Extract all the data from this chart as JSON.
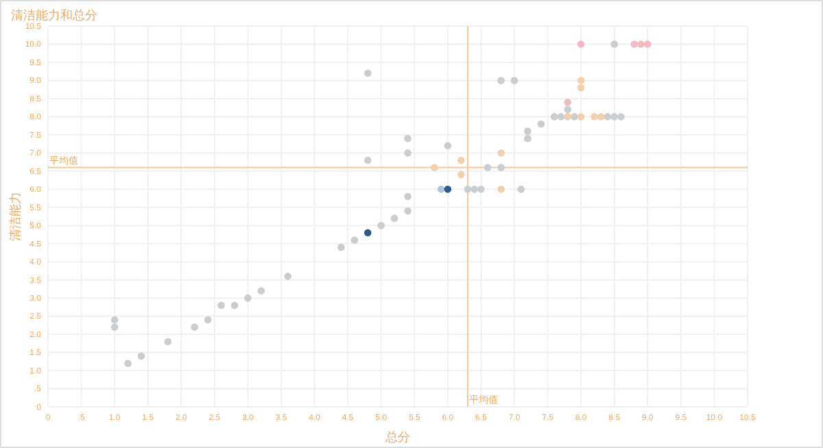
{
  "chart_data": {
    "type": "scatter",
    "title": "清洁能力和总分",
    "xlabel": "总分",
    "ylabel": "清洁能力",
    "xlim": [
      0,
      10.5
    ],
    "ylim": [
      0,
      10.5
    ],
    "xticks": [
      0,
      {
        "value": 0.5,
        "label": ".5"
      },
      {
        "value": 1,
        "label": "1.0"
      },
      1.5,
      {
        "value": 2,
        "label": "2.0"
      },
      2.5,
      {
        "value": 3,
        "label": "3.0"
      },
      3.5,
      {
        "value": 4,
        "label": "4.0"
      },
      4.5,
      {
        "value": 5,
        "label": "5.0"
      },
      5.5,
      {
        "value": 6,
        "label": "6.0"
      },
      6.5,
      {
        "value": 7,
        "label": "7.0"
      },
      7.5,
      {
        "value": 8,
        "label": "8.0"
      },
      8.5,
      {
        "value": 9,
        "label": "9.0"
      },
      9.5,
      {
        "value": 10,
        "label": "10.0"
      },
      10.5
    ],
    "yticks": [
      0,
      {
        "value": 0.5,
        "label": ".5"
      },
      {
        "value": 1,
        "label": "1.0"
      },
      1.5,
      {
        "value": 2,
        "label": "2.0"
      },
      2.5,
      {
        "value": 3,
        "label": "3.0"
      },
      3.5,
      {
        "value": 4,
        "label": "4.0"
      },
      4.5,
      {
        "value": 5,
        "label": "5.0"
      },
      5.5,
      {
        "value": 6,
        "label": "6.0"
      },
      6.5,
      {
        "value": 7,
        "label": "7.0"
      },
      7.5,
      {
        "value": 8,
        "label": "8.0"
      },
      8.5,
      {
        "value": 9,
        "label": "9.0"
      },
      9.5,
      {
        "value": 10,
        "label": "10.0"
      },
      10.5
    ],
    "grid": true,
    "marker": "circle",
    "ref_lines": [
      {
        "axis": "x",
        "value": 6.3,
        "label": "平均值",
        "color": "#f5c89a"
      },
      {
        "axis": "y",
        "value": 6.6,
        "label": "平均值",
        "color": "#f5c89a"
      }
    ],
    "series": [
      {
        "color": "#c9cdd0",
        "x": [
          1.0,
          1.0,
          1.2,
          1.4,
          1.8,
          2.2,
          2.4,
          2.6,
          2.8,
          3.0,
          3.2,
          3.6,
          4.4,
          4.6,
          5.0,
          5.2,
          5.4,
          5.4,
          5.4,
          5.4,
          4.8,
          4.8,
          6.6,
          6.8,
          6.3,
          6.4,
          6.5,
          7.1,
          6.0,
          6.8,
          7.0,
          7.2,
          7.2,
          7.4,
          7.8,
          7.6,
          7.7,
          7.9,
          8.4,
          8.5,
          8.6,
          8.5
        ],
        "values": [
          2.4,
          2.2,
          1.2,
          1.4,
          1.8,
          2.2,
          2.4,
          2.8,
          2.8,
          3.0,
          3.2,
          3.6,
          4.4,
          4.6,
          5.0,
          5.2,
          5.4,
          5.8,
          7.0,
          7.4,
          9.2,
          6.8,
          6.6,
          6.6,
          6.0,
          6.0,
          6.0,
          6.0,
          7.2,
          9.0,
          9.0,
          7.6,
          7.4,
          7.8,
          8.2,
          8.0,
          8.0,
          8.0,
          8.0,
          8.0,
          8.0,
          10.0
        ]
      },
      {
        "color": "#f3cfae",
        "x": [
          5.8,
          6.2,
          6.2,
          6.8,
          6.8,
          7.8,
          8.0,
          8.0,
          8.0,
          8.2,
          8.3
        ],
        "values": [
          6.6,
          6.8,
          6.4,
          7.0,
          6.0,
          8.0,
          8.0,
          9.0,
          8.8,
          8.0,
          8.0
        ]
      },
      {
        "color": "#f0bcc4",
        "x": [
          8.0,
          7.8,
          8.8,
          8.9,
          9.0
        ],
        "values": [
          10.0,
          8.4,
          10.0,
          10.0,
          10.0
        ]
      },
      {
        "color": "#aac8e0",
        "x": [
          5.9
        ],
        "values": [
          6.0
        ]
      },
      {
        "color": "#2e5a88",
        "x": [
          4.8,
          6.0
        ],
        "values": [
          4.8,
          6.0
        ]
      }
    ]
  }
}
